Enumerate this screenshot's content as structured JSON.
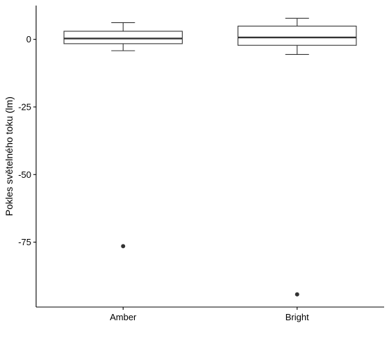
{
  "chart_data": {
    "type": "boxplot",
    "title": "",
    "xlabel": "",
    "ylabel": "Pokles světelného toku (lm)",
    "ylim": [
      -99,
      12.5
    ],
    "y_ticks": [
      0,
      -25,
      -50,
      -75
    ],
    "y_tick_labels": [
      "0",
      "-25",
      "-50",
      "-75"
    ],
    "grid": false,
    "legend": "none",
    "categories": [
      "Amber",
      "Bright"
    ],
    "boxes": [
      {
        "category": "Amber",
        "whisker_low": -4.2,
        "q1": -1.6,
        "median": 0.3,
        "q3": 3.0,
        "whisker_high": 6.2,
        "outliers": [
          -76.5
        ]
      },
      {
        "category": "Bright",
        "whisker_low": -5.6,
        "q1": -2.2,
        "median": 0.7,
        "q3": 4.9,
        "whisker_high": 7.8,
        "outliers": [
          -94.3
        ]
      }
    ],
    "colors": {
      "box_fill": "#ffffff",
      "line": "#333333",
      "axis": "#000000",
      "outlier": "#333333"
    }
  }
}
